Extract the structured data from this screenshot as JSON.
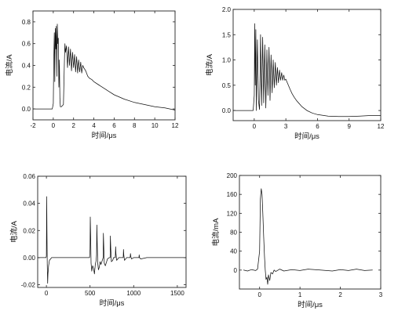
{
  "chart_data": [
    {
      "type": "line",
      "title": "",
      "xlabel": "时间/μs",
      "ylabel": "电流/A",
      "xlim": [
        -2,
        12
      ],
      "ylim": [
        -0.1,
        0.9
      ],
      "xticks": [
        "-2",
        "0",
        "2",
        "4",
        "6",
        "8",
        "10",
        "12"
      ],
      "yticks": [
        "0.0",
        "0.2",
        "0.4",
        "0.6",
        "0.8"
      ],
      "grid": false,
      "series": [
        {
          "x": [
            -2,
            -0.1,
            0.0,
            0.05,
            0.1,
            0.15,
            0.2,
            0.25,
            0.3,
            0.35,
            0.4,
            0.45,
            0.5,
            0.55,
            0.6,
            0.65,
            0.7,
            0.75,
            0.8,
            0.9,
            1.0,
            1.1,
            1.15,
            1.2,
            1.3,
            1.4,
            1.5,
            1.6,
            1.7,
            1.8,
            1.9,
            2.0,
            2.1,
            2.2,
            2.3,
            2.4,
            2.5,
            2.6,
            2.7,
            2.8,
            2.9,
            3.0,
            3.2,
            3.4,
            3.6,
            3.8,
            4.0,
            4.5,
            5,
            5.5,
            6,
            7,
            8,
            9,
            10,
            11,
            12
          ],
          "y": [
            0.0,
            0.0,
            0.05,
            0.45,
            0.7,
            0.25,
            0.74,
            0.55,
            0.76,
            0.3,
            0.78,
            0.6,
            0.65,
            0.2,
            0.45,
            0.1,
            0.02,
            0.02,
            0.02,
            0.03,
            0.04,
            0.45,
            0.6,
            0.52,
            0.58,
            0.38,
            0.57,
            0.4,
            0.55,
            0.35,
            0.52,
            0.38,
            0.5,
            0.34,
            0.48,
            0.33,
            0.45,
            0.34,
            0.43,
            0.33,
            0.4,
            0.38,
            0.35,
            0.3,
            0.28,
            0.27,
            0.25,
            0.22,
            0.19,
            0.16,
            0.13,
            0.09,
            0.06,
            0.04,
            0.02,
            0.01,
            -0.01
          ]
        }
      ]
    },
    {
      "type": "line",
      "title": "",
      "xlabel": "时间/μs",
      "ylabel": "电流/A",
      "xlim": [
        -2,
        12
      ],
      "ylim": [
        -0.2,
        2.0
      ],
      "xticks": [
        "0",
        "3",
        "6",
        "9",
        "12"
      ],
      "yticks": [
        "0.0",
        "0.5",
        "1.0",
        "1.5",
        "2.0"
      ],
      "grid": false,
      "series": [
        {
          "x": [
            -2,
            -0.1,
            0.0,
            0.05,
            0.1,
            0.15,
            0.2,
            0.3,
            0.4,
            0.5,
            0.55,
            0.6,
            0.7,
            0.8,
            0.9,
            1.0,
            1.1,
            1.2,
            1.3,
            1.4,
            1.5,
            1.6,
            1.7,
            1.8,
            1.9,
            2.0,
            2.1,
            2.2,
            2.3,
            2.4,
            2.5,
            2.6,
            2.7,
            2.8,
            2.9,
            3.0,
            3.2,
            3.4,
            3.6,
            3.8,
            4.0,
            4.5,
            5,
            5.5,
            6,
            7,
            8,
            9,
            10,
            11,
            12
          ],
          "y": [
            0.0,
            0.0,
            0.3,
            1.72,
            0.5,
            1.6,
            0.0,
            1.4,
            0.2,
            0.02,
            0.6,
            1.5,
            0.1,
            1.45,
            0.15,
            1.3,
            0.05,
            1.2,
            0.3,
            1.25,
            0.2,
            1.1,
            0.35,
            1.0,
            0.45,
            0.95,
            0.5,
            0.85,
            0.55,
            0.8,
            0.6,
            0.75,
            0.6,
            0.7,
            0.6,
            0.62,
            0.52,
            0.42,
            0.33,
            0.26,
            0.2,
            0.08,
            0.0,
            -0.05,
            -0.08,
            -0.11,
            -0.12,
            -0.12,
            -0.11,
            -0.1,
            -0.1
          ]
        }
      ]
    },
    {
      "type": "line",
      "title": "",
      "xlabel": "时间/μs",
      "ylabel": "电流/A",
      "xlim": [
        -100,
        1600
      ],
      "ylim": [
        -0.022,
        0.06
      ],
      "xticks": [
        "0",
        "500",
        "1000",
        "1500"
      ],
      "yticks": [
        "-0.02",
        "0.00",
        "0.02",
        "0.04",
        "0.06"
      ],
      "grid": false,
      "series": [
        {
          "x": [
            -100,
            -5,
            0,
            3,
            6,
            10,
            14,
            18,
            25,
            35,
            60,
            100,
            495,
            500,
            503,
            507,
            512,
            520,
            530,
            540,
            550,
            560,
            570,
            575,
            578,
            582,
            588,
            596,
            606,
            615,
            625,
            640,
            650,
            653,
            657,
            663,
            675,
            690,
            700,
            720,
            730,
            733,
            737,
            745,
            760,
            770,
            790,
            793,
            797,
            805,
            830,
            880,
            883,
            887,
            895,
            920,
            960,
            963,
            967,
            975,
            1000,
            1060,
            1063,
            1067,
            1080,
            1150,
            1600
          ],
          "y": [
            0.0,
            0.0,
            0.001,
            0.045,
            0.02,
            -0.005,
            -0.019,
            -0.012,
            -0.006,
            -0.002,
            0.0,
            0.0,
            0.0,
            0.006,
            0.03,
            0.015,
            -0.004,
            -0.01,
            -0.006,
            -0.008,
            -0.012,
            -0.005,
            -0.002,
            0.002,
            0.024,
            0.012,
            -0.004,
            -0.009,
            -0.007,
            -0.003,
            -0.005,
            -0.002,
            0.0,
            0.018,
            0.008,
            -0.004,
            -0.006,
            -0.003,
            -0.001,
            0.0,
            0.0,
            0.016,
            0.007,
            -0.003,
            -0.002,
            0.0,
            0.0,
            0.008,
            0.003,
            -0.002,
            0.0,
            0.0,
            0.006,
            0.002,
            -0.002,
            0.0,
            0.0,
            0.003,
            0.001,
            -0.001,
            0.0,
            0.0,
            0.002,
            0.0,
            -0.001,
            0.0,
            0.0
          ]
        }
      ]
    },
    {
      "type": "line",
      "title": "",
      "xlabel": "时间/μs",
      "ylabel": "电流/mA",
      "xlim": [
        -0.5,
        3.0
      ],
      "ylim": [
        -40,
        200
      ],
      "xticks": [
        "0",
        "1",
        "2",
        "3"
      ],
      "yticks": [
        "0",
        "40",
        "80",
        "120",
        "160",
        "200"
      ],
      "grid": false,
      "series": [
        {
          "x": [
            -0.4,
            -0.3,
            -0.2,
            -0.1,
            -0.05,
            0.0,
            0.02,
            0.04,
            0.06,
            0.08,
            0.1,
            0.12,
            0.14,
            0.16,
            0.18,
            0.2,
            0.22,
            0.25,
            0.28,
            0.32,
            0.36,
            0.4,
            0.5,
            0.6,
            0.8,
            1.0,
            1.2,
            1.5,
            1.8,
            2.0,
            2.2,
            2.4,
            2.6,
            2.8
          ],
          "y": [
            0,
            -2,
            1,
            -1,
            2,
            40,
            150,
            172,
            160,
            120,
            70,
            30,
            0,
            -20,
            -15,
            -30,
            -10,
            -22,
            -5,
            -8,
            0,
            -3,
            2,
            -2,
            1,
            -1,
            2,
            0,
            -2,
            1,
            -1,
            2,
            -1,
            0
          ]
        }
      ]
    }
  ]
}
